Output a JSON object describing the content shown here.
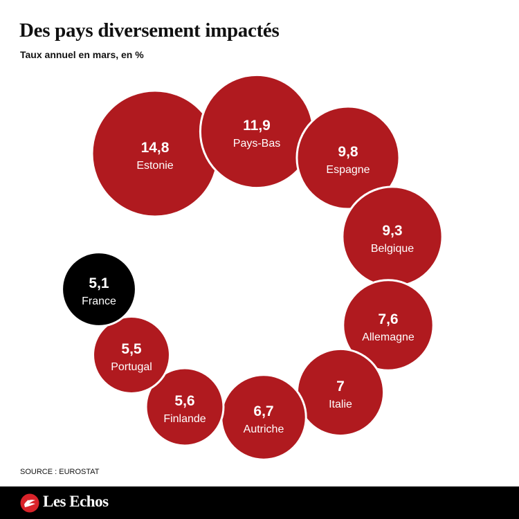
{
  "header": {
    "title": "Des pays diversement impactés",
    "subtitle": "Taux annuel en mars, en %"
  },
  "chart_data": {
    "type": "bubble",
    "unit": "%",
    "title": "Des pays diversement impactés",
    "subtitle": "Taux annuel en mars, en %",
    "series": [
      {
        "country": "Estonie",
        "value": 14.8,
        "value_label": "14,8",
        "highlight": false
      },
      {
        "country": "Pays-Bas",
        "value": 11.9,
        "value_label": "11,9",
        "highlight": false
      },
      {
        "country": "Espagne",
        "value": 9.8,
        "value_label": "9,8",
        "highlight": false
      },
      {
        "country": "Belgique",
        "value": 9.3,
        "value_label": "9,3",
        "highlight": false
      },
      {
        "country": "Allemagne",
        "value": 7.6,
        "value_label": "7,6",
        "highlight": false
      },
      {
        "country": "Italie",
        "value": 7,
        "value_label": "7",
        "highlight": false
      },
      {
        "country": "Autriche",
        "value": 6.7,
        "value_label": "6,7",
        "highlight": false
      },
      {
        "country": "Finlande",
        "value": 5.6,
        "value_label": "5,6",
        "highlight": false
      },
      {
        "country": "Portugal",
        "value": 5.5,
        "value_label": "5,5",
        "highlight": false
      },
      {
        "country": "France",
        "value": 5.1,
        "value_label": "5,1",
        "highlight": true
      }
    ],
    "colors": {
      "default": "#b01a1f",
      "highlight": "#000000",
      "text": "#ffffff",
      "stroke": "#ffffff"
    }
  },
  "footer": {
    "source": "SOURCE : EUROSTAT",
    "brand": "Les Echos"
  }
}
